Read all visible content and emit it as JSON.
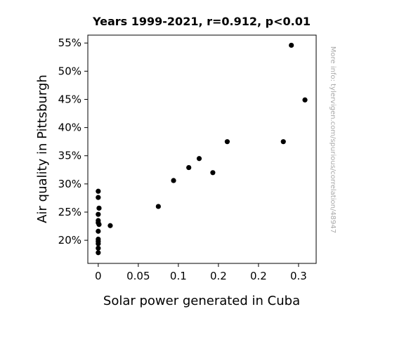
{
  "chart_data": {
    "type": "scatter",
    "title": "Years 1999-2021, r=0.912, p<0.01",
    "xlabel": "Solar power generated in Cuba",
    "ylabel": "Air quality in Pittsburgh",
    "watermark": "More info: tylervigen.com/spurious/correlation/48947",
    "xlim": [
      -0.013,
      0.272
    ],
    "ylim": [
      15.9,
      56.4
    ],
    "x_ticks": [
      0,
      0.05,
      0.1,
      0.15,
      0.2,
      0.25
    ],
    "x_tick_labels": [
      "0",
      "0.05",
      "0.1",
      "0.2",
      "0.2",
      "0.3"
    ],
    "y_ticks": [
      20,
      25,
      30,
      35,
      40,
      45,
      50,
      55
    ],
    "y_tick_labels": [
      "20%",
      "25%",
      "30%",
      "35%",
      "40%",
      "45%",
      "50%",
      "55%"
    ],
    "grid": false,
    "marker_color": "#000000",
    "points": [
      {
        "x": 0.0,
        "y": 28.7
      },
      {
        "x": 0.0,
        "y": 27.6
      },
      {
        "x": 0.0,
        "y": 24.6
      },
      {
        "x": 0.0,
        "y": 23.5
      },
      {
        "x": 0.0,
        "y": 23.1
      },
      {
        "x": 0.0,
        "y": 21.6
      },
      {
        "x": 0.0,
        "y": 20.2
      },
      {
        "x": 0.0,
        "y": 19.8
      },
      {
        "x": 0.0,
        "y": 19.4
      },
      {
        "x": 0.0,
        "y": 18.6
      },
      {
        "x": 0.0,
        "y": 17.8
      },
      {
        "x": 0.001,
        "y": 25.7
      },
      {
        "x": 0.001,
        "y": 22.8
      },
      {
        "x": 0.015,
        "y": 22.6
      },
      {
        "x": 0.075,
        "y": 26.0
      },
      {
        "x": 0.094,
        "y": 30.6
      },
      {
        "x": 0.113,
        "y": 32.9
      },
      {
        "x": 0.126,
        "y": 34.5
      },
      {
        "x": 0.143,
        "y": 32.0
      },
      {
        "x": 0.161,
        "y": 37.5
      },
      {
        "x": 0.231,
        "y": 37.5
      },
      {
        "x": 0.241,
        "y": 54.6
      },
      {
        "x": 0.258,
        "y": 44.9
      }
    ]
  }
}
